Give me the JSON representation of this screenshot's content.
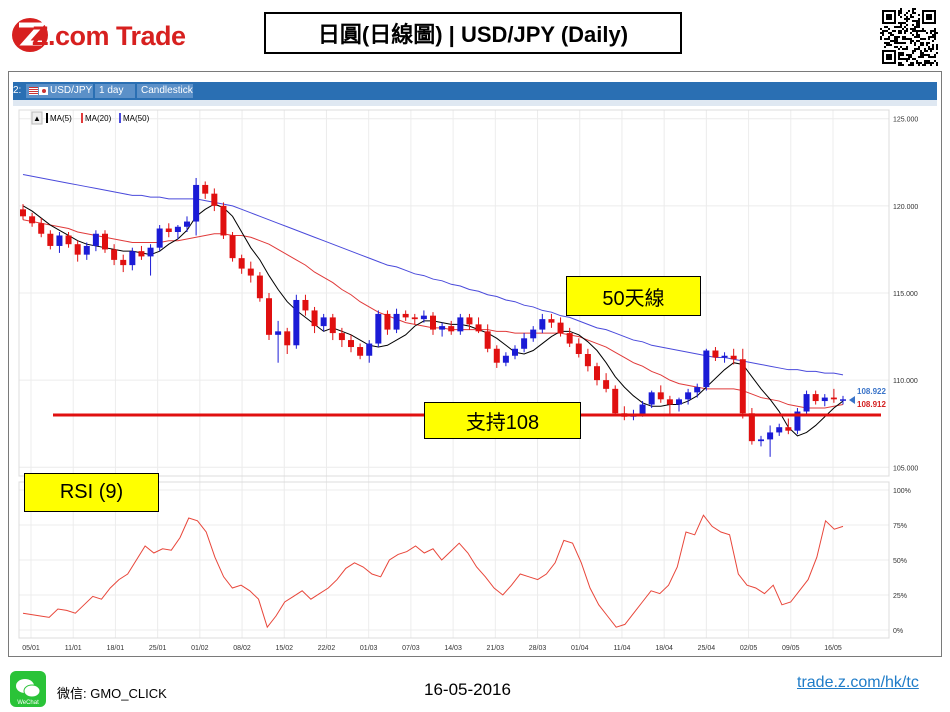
{
  "header": {
    "logo_text": "Z.com Trade",
    "title": "日圓(日線圖) | USD/JPY  (Daily)"
  },
  "toolbar": {
    "items": [
      "2:",
      "USD/JPY",
      "1 day",
      "Candlestick"
    ]
  },
  "legend": [
    "MA(5)",
    "MA(20)",
    "MA(50)"
  ],
  "annotations": {
    "ma50_label": "50天線",
    "support_label": "支持108",
    "rsi_label": "RSI (9)",
    "price_tag_upper": "108.922",
    "price_tag_lower": "108.912"
  },
  "footer": {
    "wechat_caption": "WeChat",
    "wechat": "微信: GMO_CLICK",
    "date": "16-05-2016",
    "link": "trade.z.com/hk/tc"
  },
  "colors": {
    "up_candle": "#1b1bd6",
    "down_candle": "#e01010",
    "ma5": "#000000",
    "ma20": "#e03a3a",
    "ma50": "#4a4adb",
    "rsi": "#e8463a",
    "support_line": "#e01010",
    "callout": "#ffff00"
  },
  "chart_data": {
    "type": "candlestick",
    "symbol": "USD/JPY",
    "interval": "1 day",
    "price_axis": {
      "ticks": [
        "125.000",
        "120.000",
        "115.000",
        "110.000",
        "105.000"
      ],
      "ylim": [
        104.5,
        125.5
      ]
    },
    "x_tick_labels": [
      "05/01",
      "11/01",
      "18/01",
      "25/01",
      "01/02",
      "08/02",
      "15/02",
      "22/02",
      "01/03",
      "07/03",
      "14/03",
      "21/03",
      "28/03",
      "01/04",
      "11/04",
      "18/04",
      "25/04",
      "02/05",
      "09/05",
      "16/05"
    ],
    "rsi_axis": {
      "ticks": [
        "100%",
        "75%",
        "50%",
        "25%",
        "0%"
      ],
      "ylim": [
        0,
        100
      ]
    },
    "support_level": 108,
    "last_price": 108.912,
    "candles": [
      [
        119.8,
        120.1,
        119.2,
        119.4
      ],
      [
        119.4,
        119.6,
        118.8,
        119.0
      ],
      [
        119.0,
        119.3,
        118.2,
        118.4
      ],
      [
        118.4,
        118.6,
        117.5,
        117.7
      ],
      [
        117.7,
        118.5,
        117.3,
        118.3
      ],
      [
        118.3,
        118.5,
        117.6,
        117.8
      ],
      [
        117.8,
        118.0,
        116.8,
        117.2
      ],
      [
        117.2,
        117.9,
        116.9,
        117.7
      ],
      [
        117.7,
        118.6,
        117.4,
        118.4
      ],
      [
        118.4,
        118.6,
        117.3,
        117.5
      ],
      [
        117.5,
        117.8,
        116.6,
        116.9
      ],
      [
        116.9,
        117.2,
        116.2,
        116.6
      ],
      [
        116.6,
        117.6,
        116.3,
        117.4
      ],
      [
        117.4,
        117.7,
        116.9,
        117.1
      ],
      [
        117.1,
        117.8,
        116.0,
        117.6
      ],
      [
        117.6,
        118.9,
        117.4,
        118.7
      ],
      [
        118.7,
        119.0,
        118.2,
        118.5
      ],
      [
        118.5,
        118.9,
        118.1,
        118.8
      ],
      [
        118.8,
        119.4,
        118.5,
        119.1
      ],
      [
        119.1,
        121.6,
        118.3,
        121.2
      ],
      [
        121.2,
        121.4,
        120.4,
        120.7
      ],
      [
        120.7,
        121.0,
        119.7,
        120.0
      ],
      [
        120.0,
        120.2,
        118.1,
        118.3
      ],
      [
        118.3,
        118.5,
        116.8,
        117.0
      ],
      [
        117.0,
        117.2,
        116.1,
        116.4
      ],
      [
        116.4,
        116.8,
        115.6,
        116.0
      ],
      [
        116.0,
        116.2,
        114.5,
        114.7
      ],
      [
        114.7,
        115.0,
        112.3,
        112.6
      ],
      [
        112.6,
        113.4,
        111.0,
        112.8
      ],
      [
        112.8,
        113.0,
        111.5,
        112.0
      ],
      [
        112.0,
        114.9,
        111.8,
        114.6
      ],
      [
        114.6,
        114.9,
        113.7,
        114.0
      ],
      [
        114.0,
        114.2,
        112.7,
        113.1
      ],
      [
        113.1,
        113.8,
        112.8,
        113.6
      ],
      [
        113.6,
        113.8,
        112.3,
        112.7
      ],
      [
        112.7,
        113.0,
        111.9,
        112.3
      ],
      [
        112.3,
        112.6,
        111.6,
        111.9
      ],
      [
        111.9,
        112.1,
        111.2,
        111.4
      ],
      [
        111.4,
        112.3,
        111.0,
        112.1
      ],
      [
        112.1,
        114.0,
        111.9,
        113.8
      ],
      [
        113.8,
        114.0,
        112.6,
        112.9
      ],
      [
        112.9,
        114.1,
        112.7,
        113.8
      ],
      [
        113.8,
        114.0,
        113.4,
        113.6
      ],
      [
        113.6,
        113.8,
        113.2,
        113.5
      ],
      [
        113.5,
        114.0,
        113.3,
        113.7
      ],
      [
        113.7,
        113.9,
        112.6,
        112.9
      ],
      [
        112.9,
        113.3,
        112.5,
        113.1
      ],
      [
        113.1,
        113.4,
        112.6,
        112.8
      ],
      [
        112.8,
        113.8,
        112.6,
        113.6
      ],
      [
        113.6,
        113.8,
        112.9,
        113.2
      ],
      [
        113.2,
        113.6,
        112.7,
        112.8
      ],
      [
        112.8,
        113.2,
        111.6,
        111.8
      ],
      [
        111.8,
        112.0,
        110.7,
        111.0
      ],
      [
        111.0,
        111.6,
        110.8,
        111.4
      ],
      [
        111.4,
        112.0,
        111.2,
        111.8
      ],
      [
        111.8,
        112.7,
        111.6,
        112.4
      ],
      [
        112.4,
        113.1,
        112.2,
        112.9
      ],
      [
        112.9,
        113.8,
        112.7,
        113.5
      ],
      [
        113.5,
        113.8,
        113.0,
        113.3
      ],
      [
        113.3,
        113.6,
        112.5,
        112.7
      ],
      [
        112.7,
        113.0,
        111.9,
        112.1
      ],
      [
        112.1,
        112.4,
        111.3,
        111.5
      ],
      [
        111.5,
        111.8,
        110.5,
        110.8
      ],
      [
        110.8,
        111.0,
        109.7,
        110.0
      ],
      [
        110.0,
        110.4,
        109.3,
        109.5
      ],
      [
        109.5,
        109.7,
        108.0,
        108.1
      ],
      [
        108.1,
        108.5,
        107.7,
        107.9
      ],
      [
        107.9,
        108.3,
        107.7,
        108.0
      ],
      [
        108.0,
        108.8,
        107.9,
        108.6
      ],
      [
        108.6,
        109.4,
        108.4,
        109.3
      ],
      [
        109.3,
        109.7,
        108.7,
        108.9
      ],
      [
        108.9,
        109.1,
        108.0,
        108.6
      ],
      [
        108.6,
        109.0,
        108.2,
        108.9
      ],
      [
        108.9,
        109.5,
        108.6,
        109.3
      ],
      [
        109.3,
        109.8,
        109.0,
        109.6
      ],
      [
        109.6,
        111.8,
        109.4,
        111.7
      ],
      [
        111.7,
        111.9,
        111.1,
        111.3
      ],
      [
        111.3,
        111.6,
        111.0,
        111.4
      ],
      [
        111.4,
        111.8,
        110.9,
        111.2
      ],
      [
        111.2,
        111.8,
        107.8,
        108.1
      ],
      [
        108.1,
        108.4,
        106.3,
        106.5
      ],
      [
        106.5,
        106.8,
        106.2,
        106.6
      ],
      [
        106.6,
        107.4,
        105.6,
        107.0
      ],
      [
        107.0,
        107.5,
        106.8,
        107.3
      ],
      [
        107.3,
        107.8,
        106.9,
        107.1
      ],
      [
        107.1,
        108.4,
        106.9,
        108.2
      ],
      [
        108.2,
        109.4,
        108.0,
        109.2
      ],
      [
        109.2,
        109.4,
        108.6,
        108.8
      ],
      [
        108.8,
        109.2,
        108.5,
        109.0
      ],
      [
        109.0,
        109.5,
        108.7,
        108.9
      ],
      [
        108.9,
        109.1,
        108.6,
        108.9
      ]
    ],
    "ma5": [
      120.0,
      119.7,
      119.3,
      118.9,
      118.6,
      118.3,
      118.0,
      117.8,
      117.7,
      117.6,
      117.5,
      117.4,
      117.4,
      117.3,
      117.2,
      117.4,
      117.8,
      118.1,
      118.6,
      119.4,
      119.8,
      120.1,
      119.9,
      119.4,
      118.5,
      117.6,
      116.9,
      116.0,
      115.2,
      114.5,
      114.0,
      113.6,
      113.2,
      112.8,
      113.0,
      112.8,
      112.6,
      112.3,
      112.0,
      111.9,
      112.0,
      112.3,
      112.6,
      113.1,
      113.4,
      113.4,
      113.3,
      113.2,
      113.2,
      113.1,
      112.9,
      112.7,
      112.4,
      112.0,
      111.6,
      111.5,
      111.7,
      112.1,
      112.5,
      112.8,
      112.8,
      112.6,
      112.2,
      111.7,
      111.0,
      110.2,
      109.6,
      109.1,
      108.7,
      108.5,
      108.5,
      108.6,
      108.6,
      108.8,
      109.1,
      109.6,
      110.1,
      110.6,
      111.0,
      110.9,
      110.2,
      109.5,
      108.9,
      108.2,
      107.3,
      106.8,
      107.0,
      107.4,
      107.9,
      108.4,
      108.8
    ],
    "ma20": [
      119.2,
      119.1,
      119.0,
      118.9,
      118.8,
      118.7,
      118.5,
      118.4,
      118.3,
      118.2,
      118.1,
      118.0,
      117.9,
      117.9,
      117.9,
      117.9,
      118.0,
      118.0,
      118.1,
      118.2,
      118.3,
      118.4,
      118.4,
      118.3,
      118.3,
      118.2,
      118.0,
      117.8,
      117.5,
      117.2,
      116.9,
      116.6,
      116.2,
      115.9,
      115.6,
      115.2,
      114.9,
      114.5,
      114.2,
      113.9,
      113.7,
      113.5,
      113.3,
      113.2,
      113.1,
      113.0,
      113.0,
      112.9,
      112.9,
      112.9,
      112.9,
      112.9,
      112.8,
      112.8,
      112.7,
      112.7,
      112.7,
      112.7,
      112.7,
      112.7,
      112.6,
      112.5,
      112.3,
      112.1,
      111.9,
      111.6,
      111.3,
      111.0,
      110.8,
      110.5,
      110.3,
      110.0,
      109.8,
      109.7,
      109.6,
      109.5,
      109.5,
      109.5,
      109.5,
      109.4,
      109.2,
      109.0,
      108.9,
      108.8,
      108.6,
      108.5,
      108.4,
      108.4,
      108.4,
      108.5,
      108.6
    ],
    "ma50": [
      121.8,
      121.7,
      121.6,
      121.5,
      121.4,
      121.3,
      121.2,
      121.1,
      121.0,
      120.9,
      120.8,
      120.7,
      120.6,
      120.6,
      120.5,
      120.5,
      120.4,
      120.4,
      120.4,
      120.4,
      120.3,
      120.2,
      120.1,
      120.0,
      119.8,
      119.6,
      119.4,
      119.2,
      119.0,
      118.8,
      118.6,
      118.4,
      118.2,
      118.0,
      117.8,
      117.6,
      117.4,
      117.2,
      117.0,
      116.8,
      116.6,
      116.5,
      116.3,
      116.1,
      116.0,
      115.8,
      115.7,
      115.5,
      115.4,
      115.2,
      115.1,
      114.9,
      114.8,
      114.6,
      114.5,
      114.3,
      114.2,
      114.0,
      113.9,
      113.7,
      113.6,
      113.4,
      113.2,
      113.0,
      112.9,
      112.7,
      112.5,
      112.3,
      112.2,
      112.0,
      111.9,
      111.8,
      111.7,
      111.6,
      111.5,
      111.4,
      111.3,
      111.3,
      111.2,
      111.1,
      111.0,
      110.9,
      110.8,
      110.7,
      110.6,
      110.6,
      110.5,
      110.5,
      110.4,
      110.4,
      110.3
    ],
    "rsi": [
      12,
      11,
      10,
      9,
      15,
      14,
      12,
      18,
      24,
      22,
      30,
      36,
      40,
      50,
      60,
      55,
      58,
      57,
      66,
      80,
      78,
      70,
      52,
      38,
      30,
      32,
      28,
      22,
      2,
      10,
      20,
      24,
      28,
      22,
      26,
      30,
      36,
      44,
      48,
      45,
      40,
      38,
      50,
      54,
      56,
      60,
      55,
      58,
      50,
      56,
      62,
      55,
      45,
      38,
      30,
      25,
      32,
      40,
      38,
      36,
      40,
      48,
      64,
      62,
      48,
      30,
      18,
      10,
      2,
      4,
      12,
      20,
      28,
      26,
      32,
      45,
      70,
      68,
      82,
      74,
      70,
      68,
      40,
      32,
      30,
      26,
      32,
      18,
      20,
      28,
      36
    ],
    "rsi_tail": [
      52,
      78,
      72,
      74
    ]
  }
}
